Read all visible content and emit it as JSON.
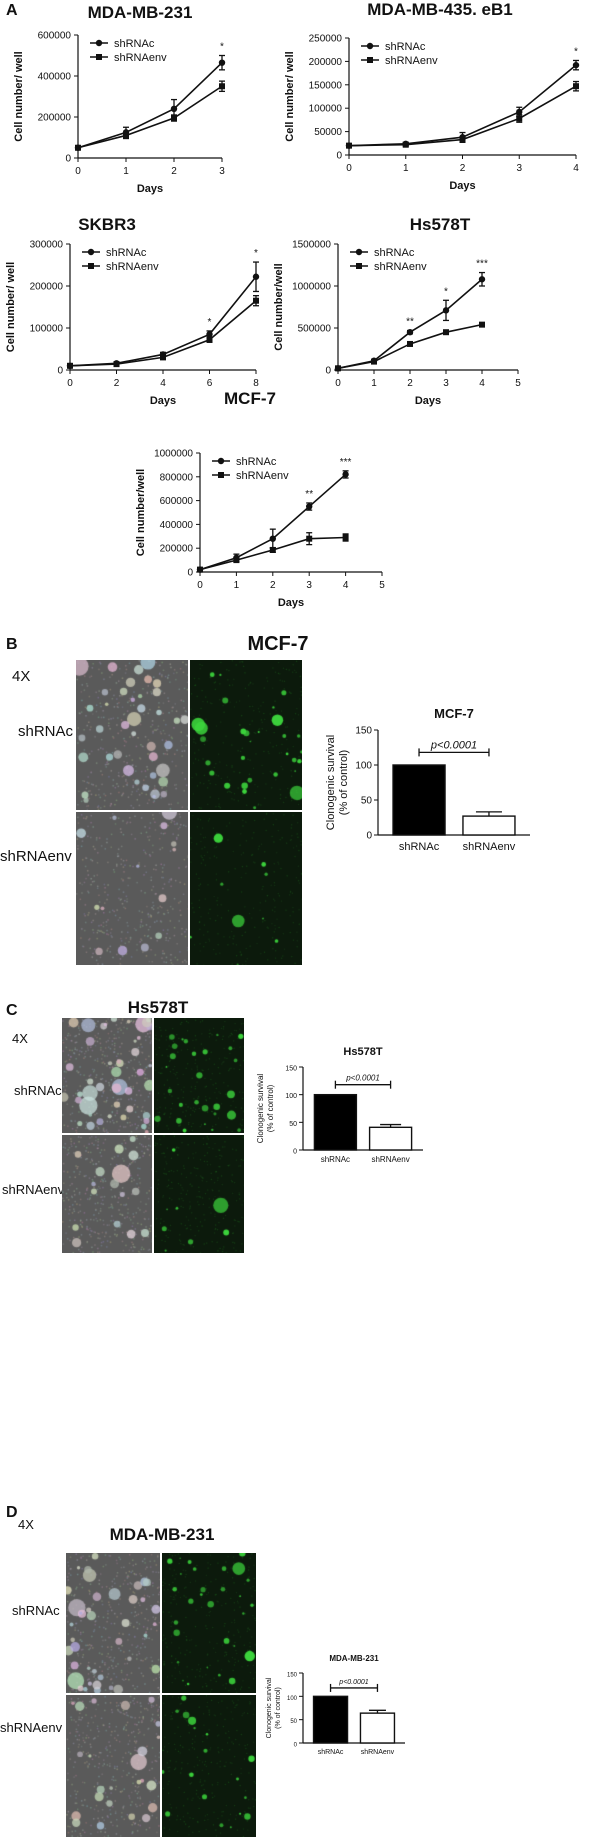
{
  "panel_letters": {
    "a": "A",
    "b": "B",
    "c": "C",
    "d": "D"
  },
  "growth_charts": [
    {
      "title": "MDA-MB-231",
      "xlabel": "Days",
      "ylabel": "Cell number/ well",
      "xticks": [
        "0",
        "1",
        "2",
        "3"
      ],
      "yticks": [
        "0",
        "200000",
        "400000",
        "600000"
      ],
      "legend": [
        "shRNAc",
        "shRNAenv"
      ],
      "significance": [
        {
          "x": 3,
          "label": "*"
        }
      ]
    },
    {
      "title": "MDA-MB-435. eB1",
      "xlabel": "Days",
      "ylabel": "Cell number/ well",
      "xticks": [
        "0",
        "1",
        "2",
        "3",
        "4"
      ],
      "yticks": [
        "0",
        "50000",
        "100000",
        "150000",
        "200000",
        "250000"
      ],
      "legend": [
        "shRNAc",
        "shRNAenv"
      ],
      "significance": [
        {
          "x": 4,
          "label": "*"
        }
      ]
    },
    {
      "title": "SKBR3",
      "xlabel": "Days",
      "ylabel": "Cell number/ well",
      "xticks": [
        "0",
        "2",
        "4",
        "6",
        "8"
      ],
      "yticks": [
        "0",
        "100000",
        "200000",
        "300000"
      ],
      "legend": [
        "shRNAc",
        "shRNAenv"
      ],
      "significance": [
        {
          "x": 6,
          "label": "*"
        },
        {
          "x": 8,
          "label": "*"
        }
      ]
    },
    {
      "title": "Hs578T",
      "xlabel": "Days",
      "ylabel": "Cell number/well",
      "xticks": [
        "0",
        "1",
        "2",
        "3",
        "4",
        "5"
      ],
      "yticks": [
        "0",
        "500000",
        "1000000",
        "1500000"
      ],
      "legend": [
        "shRNAc",
        "shRNAenv"
      ],
      "significance": [
        {
          "x": 2,
          "label": "**"
        },
        {
          "x": 3,
          "label": "*"
        },
        {
          "x": 4,
          "label": "***"
        }
      ]
    },
    {
      "title": "MCF-7",
      "xlabel": "Days",
      "ylabel": "Cell number/well",
      "xticks": [
        "0",
        "1",
        "2",
        "3",
        "4",
        "5"
      ],
      "yticks": [
        "0",
        "200000",
        "400000",
        "600000",
        "800000",
        "1000000"
      ],
      "legend": [
        "shRNAc",
        "shRNAenv"
      ],
      "significance": [
        {
          "x": 3,
          "label": "**"
        },
        {
          "x": 4,
          "label": "***"
        }
      ]
    }
  ],
  "bar_charts": [
    {
      "title": "MCF-7",
      "ylabel": "Clonogenic survival",
      "ylabel2": "(% of control)",
      "categories": [
        "shRNAc",
        "shRNAenv"
      ],
      "yticks": [
        "0",
        "50",
        "100",
        "150"
      ],
      "pvalue": "p<0.0001"
    },
    {
      "title": "Hs578T",
      "ylabel": "Clonogenic survival",
      "ylabel2": "(% of control)",
      "categories": [
        "shRNAc",
        "shRNAenv"
      ],
      "yticks": [
        "0",
        "50",
        "100",
        "150"
      ],
      "pvalue": "p<0.0001"
    },
    {
      "title": "MDA-MB-231",
      "ylabel": "Clonogenic survival",
      "ylabel2": "(% of control)",
      "categories": [
        "shRNAc",
        "shRNAenv"
      ],
      "yticks": [
        "0",
        "50",
        "100",
        "150"
      ],
      "pvalue": "p<0.0001"
    }
  ],
  "micrographs": [
    {
      "title": "MCF-7",
      "magnification": "4X",
      "row_top": "shRNAc",
      "row_bottom": "shRNAenv"
    },
    {
      "title": "Hs578T",
      "magnification": "4X",
      "row_top": "shRNAc",
      "row_bottom": "shRNAenv"
    },
    {
      "title": "MDA-MB-231",
      "magnification": "4X",
      "row_top": "shRNAc",
      "row_bottom": "shRNAenv"
    }
  ],
  "colors": {
    "line": "#111111",
    "bar_fill": "#000000",
    "bar_empty": "#ffffff",
    "micro_gray": "#5a5a5a",
    "micro_green": "#0c1a0c",
    "fluor": "#3cd43c"
  },
  "chart_data": [
    {
      "type": "line",
      "title": "MDA-MB-231",
      "xlabel": "Days",
      "ylabel": "Cell number/ well",
      "x": [
        0,
        1,
        2,
        3
      ],
      "xlim": [
        0,
        3
      ],
      "ylim": [
        0,
        600000
      ],
      "grid": false,
      "legend": "top-left",
      "series": [
        {
          "name": "shRNAc",
          "marker": "circle",
          "values": [
            50000,
            125000,
            240000,
            465000
          ],
          "errors": [
            5000,
            25000,
            45000,
            35000
          ]
        },
        {
          "name": "shRNAenv",
          "marker": "square",
          "values": [
            50000,
            110000,
            195000,
            350000
          ],
          "errors": [
            5000,
            15000,
            15000,
            25000
          ]
        }
      ]
    },
    {
      "type": "line",
      "title": "MDA-MB-435. eB1",
      "xlabel": "Days",
      "ylabel": "Cell number/ well",
      "x": [
        0,
        1,
        2,
        3,
        4
      ],
      "xlim": [
        0,
        4
      ],
      "ylim": [
        0,
        250000
      ],
      "grid": false,
      "legend": "top-left",
      "series": [
        {
          "name": "shRNAc",
          "marker": "circle",
          "values": [
            20000,
            24000,
            38000,
            92000,
            192000
          ],
          "errors": [
            2000,
            3000,
            10000,
            10000,
            10000
          ]
        },
        {
          "name": "shRNAenv",
          "marker": "square",
          "values": [
            20000,
            22000,
            33000,
            78000,
            147000
          ],
          "errors": [
            2000,
            3000,
            6000,
            8000,
            10000
          ]
        }
      ]
    },
    {
      "type": "line",
      "title": "SKBR3",
      "xlabel": "Days",
      "ylabel": "Cell number/ well",
      "x": [
        0,
        2,
        4,
        6,
        8
      ],
      "xlim": [
        0,
        8
      ],
      "ylim": [
        0,
        300000
      ],
      "grid": false,
      "legend": "top-left",
      "series": [
        {
          "name": "shRNAc",
          "marker": "circle",
          "values": [
            10000,
            16000,
            37000,
            85000,
            222000
          ],
          "errors": [
            2000,
            3000,
            5000,
            8000,
            35000
          ]
        },
        {
          "name": "shRNAenv",
          "marker": "square",
          "values": [
            10000,
            14000,
            30000,
            72000,
            165000
          ],
          "errors": [
            2000,
            3000,
            4000,
            6000,
            12000
          ]
        }
      ]
    },
    {
      "type": "line",
      "title": "Hs578T",
      "xlabel": "Days",
      "ylabel": "Cell number/well",
      "x": [
        0,
        1,
        2,
        3,
        4
      ],
      "xlim": [
        0,
        5
      ],
      "ylim": [
        0,
        1500000
      ],
      "grid": false,
      "legend": "top-left",
      "series": [
        {
          "name": "shRNAc",
          "marker": "circle",
          "values": [
            20000,
            110000,
            450000,
            710000,
            1080000
          ],
          "errors": [
            5000,
            15000,
            20000,
            120000,
            80000
          ]
        },
        {
          "name": "shRNAenv",
          "marker": "square",
          "values": [
            20000,
            100000,
            310000,
            450000,
            540000
          ],
          "errors": [
            5000,
            10000,
            15000,
            20000,
            20000
          ]
        }
      ]
    },
    {
      "type": "line",
      "title": "MCF-7",
      "xlabel": "Days",
      "ylabel": "Cell number/well",
      "x": [
        0,
        1,
        2,
        3,
        4
      ],
      "xlim": [
        0,
        5
      ],
      "ylim": [
        0,
        1000000
      ],
      "grid": false,
      "legend": "top-left",
      "series": [
        {
          "name": "shRNAc",
          "marker": "circle",
          "values": [
            20000,
            120000,
            280000,
            550000,
            820000
          ],
          "errors": [
            5000,
            30000,
            80000,
            30000,
            30000
          ]
        },
        {
          "name": "shRNAenv",
          "marker": "square",
          "values": [
            20000,
            100000,
            185000,
            280000,
            290000
          ],
          "errors": [
            5000,
            15000,
            20000,
            50000,
            30000
          ]
        }
      ]
    },
    {
      "type": "bar",
      "title": "MCF-7",
      "ylabel": "Clonogenic survival (% of control)",
      "categories": [
        "shRNAc",
        "shRNAenv"
      ],
      "values": [
        100,
        27
      ],
      "errors": [
        0,
        6
      ],
      "ylim": [
        0,
        150
      ]
    },
    {
      "type": "bar",
      "title": "Hs578T",
      "ylabel": "Clonogenic survival (% of control)",
      "categories": [
        "shRNAc",
        "shRNAenv"
      ],
      "values": [
        100,
        41
      ],
      "errors": [
        0,
        5
      ],
      "ylim": [
        0,
        150
      ]
    },
    {
      "type": "bar",
      "title": "MDA-MB-231",
      "ylabel": "Clonogenic survival (% of control)",
      "categories": [
        "shRNAc",
        "shRNAenv"
      ],
      "values": [
        100,
        64
      ],
      "errors": [
        0,
        6
      ],
      "ylim": [
        0,
        150
      ]
    }
  ]
}
